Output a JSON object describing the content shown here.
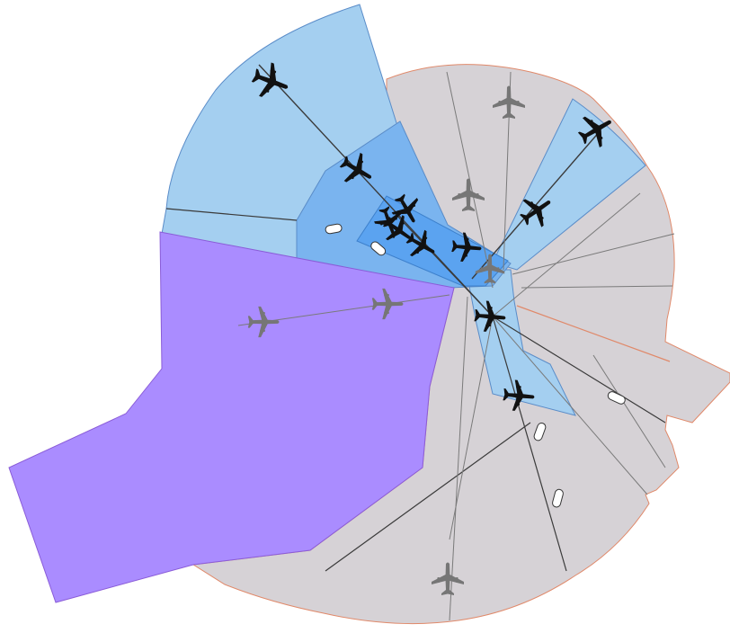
{
  "diagram": {
    "colors": {
      "background": "#ffffff",
      "gray_sector": "#d6d2d6",
      "gray_outline": "#e0896a",
      "light_blue": "#a4cff0",
      "medium_blue": "#7ab4ef",
      "runway_blue": "#5ba3f0",
      "purple": "#aa8cff",
      "purple_outline": "#8a5cd8",
      "route_line": "#3a3a3a",
      "route_line_gray": "#7a7a7a",
      "active_aircraft": "#111111",
      "inactive_aircraft": "#767676"
    },
    "aircraft": [
      {
        "name": "aircraft-north-light-blue",
        "state": "active"
      },
      {
        "name": "aircraft-north-medium-blue",
        "state": "active"
      },
      {
        "name": "aircraft-runway-cluster-1",
        "state": "active"
      },
      {
        "name": "aircraft-runway-cluster-2",
        "state": "active"
      },
      {
        "name": "aircraft-runway-cluster-3",
        "state": "active"
      },
      {
        "name": "aircraft-runway-cluster-4",
        "state": "active"
      },
      {
        "name": "aircraft-runway-east",
        "state": "active"
      },
      {
        "name": "aircraft-east-corridor-outer",
        "state": "active"
      },
      {
        "name": "aircraft-east-corridor-inner",
        "state": "active"
      },
      {
        "name": "aircraft-hub",
        "state": "active"
      },
      {
        "name": "aircraft-south-corridor",
        "state": "active"
      },
      {
        "name": "aircraft-gray-north",
        "state": "inactive"
      },
      {
        "name": "aircraft-gray-upper",
        "state": "inactive"
      },
      {
        "name": "aircraft-gray-hub",
        "state": "inactive"
      },
      {
        "name": "aircraft-purple-west",
        "state": "inactive"
      },
      {
        "name": "aircraft-purple-east",
        "state": "inactive"
      },
      {
        "name": "aircraft-gray-south",
        "state": "inactive"
      }
    ]
  }
}
